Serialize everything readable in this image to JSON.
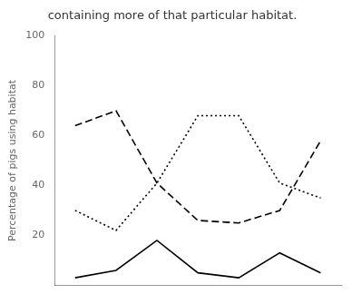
{
  "chart_data": {
    "type": "line",
    "title": "containing more of that particular habitat.",
    "ylabel": "Percentage of pigs using habitat",
    "x": [
      1,
      2,
      3,
      4,
      5,
      6,
      7
    ],
    "series": [
      {
        "color": "#000000",
        "line_style": "dotted",
        "values": [
          30,
          22,
          41,
          68,
          68,
          41,
          35
        ]
      },
      {
        "color": "#000000",
        "line_style": "dashed",
        "values": [
          64,
          70,
          41,
          26,
          25,
          30,
          58
        ]
      },
      {
        "color": "#000000",
        "line_style": "solid",
        "values": [
          3,
          6,
          18,
          5,
          3,
          13,
          5
        ]
      }
    ],
    "xlim": [
      0.5,
      7.5
    ],
    "ylim": [
      0,
      100
    ],
    "yticks": [
      20,
      40,
      60,
      80,
      100
    ],
    "grid": false,
    "tick_labels": "y"
  }
}
